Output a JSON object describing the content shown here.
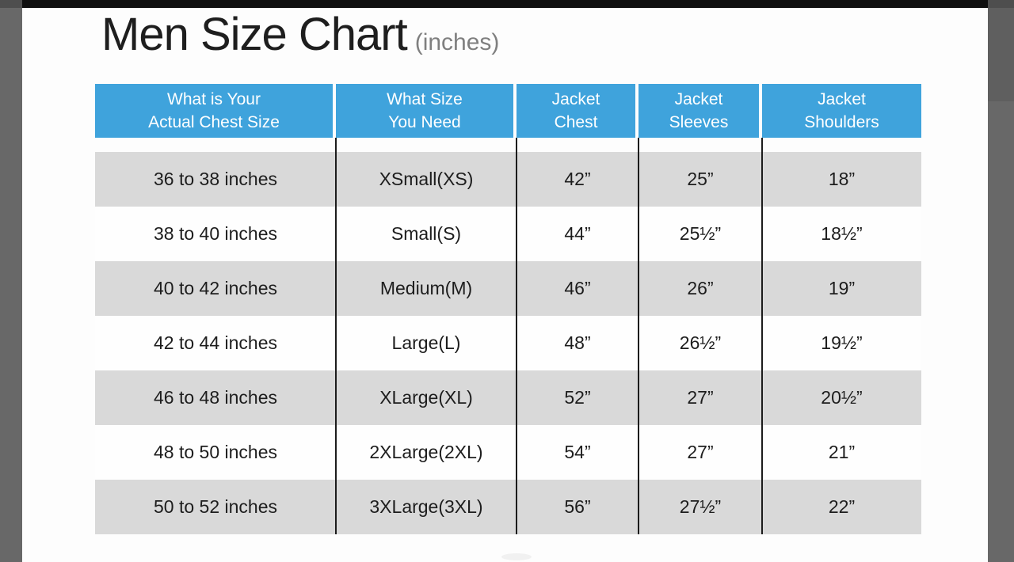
{
  "page": {
    "title": "Men Size Chart",
    "subtitle": "(inches)"
  },
  "table": {
    "headers": [
      {
        "line1": "What is Your",
        "line2": "Actual Chest Size"
      },
      {
        "line1": "What Size",
        "line2": "You Need"
      },
      {
        "line1": "Jacket",
        "line2": "Chest"
      },
      {
        "line1": "Jacket",
        "line2": "Sleeves"
      },
      {
        "line1": "Jacket",
        "line2": "Shoulders"
      }
    ],
    "rows": [
      [
        "36 to 38 inches",
        "XSmall(XS)",
        "42”",
        "25”",
        "18”"
      ],
      [
        "38 to 40 inches",
        "Small(S)",
        "44”",
        "25½”",
        "18½”"
      ],
      [
        "40 to 42 inches",
        "Medium(M)",
        "46”",
        "26”",
        "19”"
      ],
      [
        "42 to 44 inches",
        "Large(L)",
        "48”",
        "26½”",
        "19½”"
      ],
      [
        "46 to 48 inches",
        "XLarge(XL)",
        "52”",
        "27”",
        "20½”"
      ],
      [
        "48 to 50 inches",
        "2XLarge(2XL)",
        "54”",
        "27”",
        "21”"
      ],
      [
        "50 to 52 inches",
        "3XLarge(3XL)",
        "56”",
        "27½”",
        "22”"
      ]
    ]
  },
  "colors": {
    "header_bg": "#3FA3DC",
    "header_text": "#FFFFFF",
    "row_alt_bg": "#D9D9D9",
    "row_bg": "#FEFEFE",
    "cell_text": "#1D1D1D",
    "frame_gray": "#686868",
    "top_bar": "#101010"
  },
  "chart_data": {
    "type": "table",
    "title": "Men Size Chart (inches)",
    "units": "inches",
    "columns": [
      "What is Your Actual Chest Size",
      "What Size You Need",
      "Jacket Chest",
      "Jacket Sleeves",
      "Jacket Shoulders"
    ],
    "rows": [
      {
        "chest_range": "36 to 38",
        "size": "XSmall(XS)",
        "jacket_chest": 42,
        "jacket_sleeves": 25,
        "jacket_shoulders": 18
      },
      {
        "chest_range": "38 to 40",
        "size": "Small(S)",
        "jacket_chest": 44,
        "jacket_sleeves": 25.5,
        "jacket_shoulders": 18.5
      },
      {
        "chest_range": "40 to 42",
        "size": "Medium(M)",
        "jacket_chest": 46,
        "jacket_sleeves": 26,
        "jacket_shoulders": 19
      },
      {
        "chest_range": "42 to 44",
        "size": "Large(L)",
        "jacket_chest": 48,
        "jacket_sleeves": 26.5,
        "jacket_shoulders": 19.5
      },
      {
        "chest_range": "46 to 48",
        "size": "XLarge(XL)",
        "jacket_chest": 52,
        "jacket_sleeves": 27,
        "jacket_shoulders": 20.5
      },
      {
        "chest_range": "48 to 50",
        "size": "2XLarge(2XL)",
        "jacket_chest": 54,
        "jacket_sleeves": 27,
        "jacket_shoulders": 21
      },
      {
        "chest_range": "50 to 52",
        "size": "3XLarge(3XL)",
        "jacket_chest": 56,
        "jacket_sleeves": 27.5,
        "jacket_shoulders": 22
      }
    ]
  }
}
